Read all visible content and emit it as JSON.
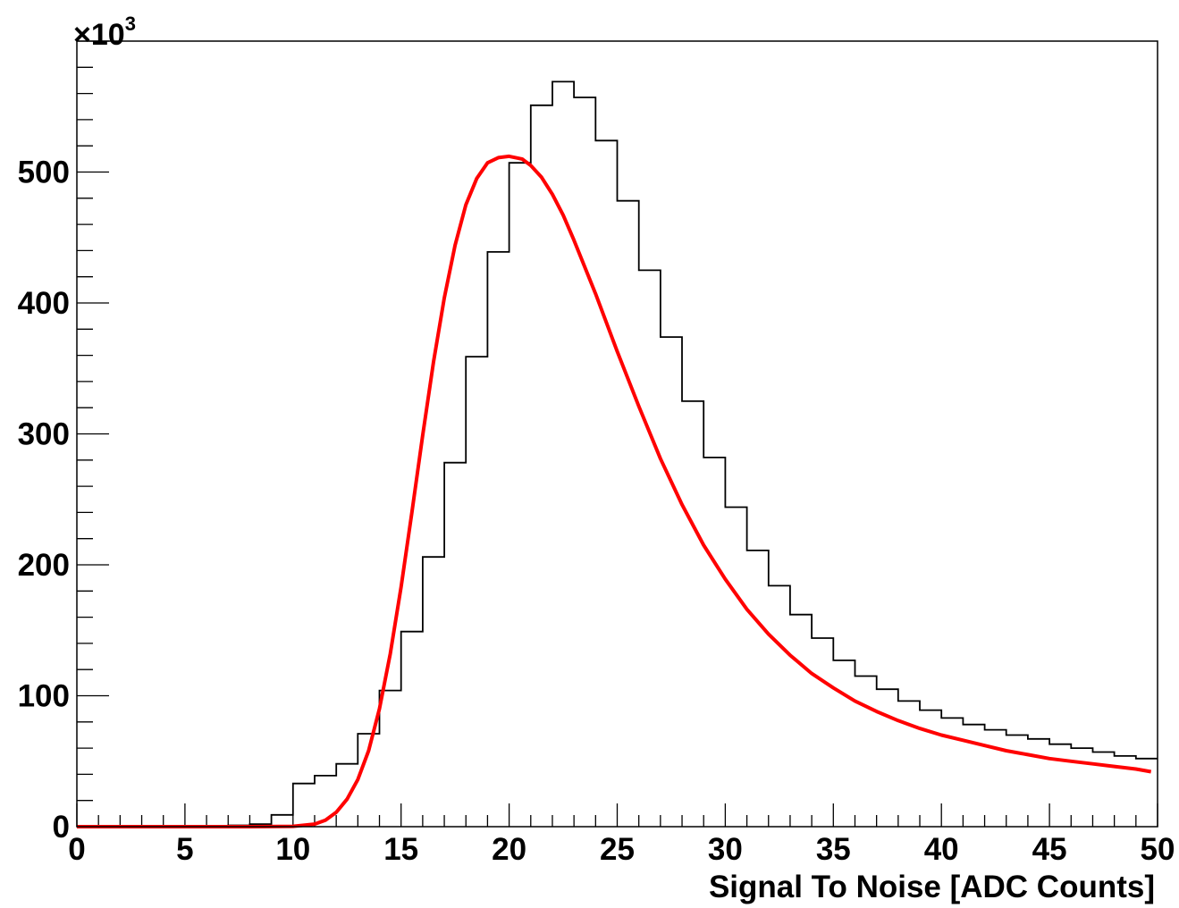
{
  "chart_data": {
    "type": "histogram",
    "title": "",
    "xlabel": "Signal To Noise [ADC Counts]",
    "ylabel": "",
    "xlim": [
      0,
      50
    ],
    "ylim": [
      0,
      600
    ],
    "y_multiplier": {
      "times": "×",
      "base": "10",
      "exponent": "3"
    },
    "x_tick_labels": [
      "0",
      "5",
      "10",
      "15",
      "20",
      "25",
      "30",
      "35",
      "40",
      "45",
      "50"
    ],
    "y_tick_labels": [
      "0",
      "100",
      "200",
      "300",
      "400",
      "500"
    ],
    "grid": false,
    "legend": "none",
    "colors": {
      "histogram": "#000000",
      "fit": "#ff0000",
      "frame": "#000000"
    },
    "series": [
      {
        "kind": "histogram",
        "bin_width": 1,
        "bin_edges_start": 0,
        "values": [
          0,
          0,
          0,
          0,
          0,
          0,
          0,
          1,
          2,
          9,
          33,
          39,
          48,
          71,
          104,
          149,
          206,
          278,
          359,
          439,
          507,
          551,
          569,
          557,
          524,
          478,
          425,
          374,
          325,
          282,
          244,
          211,
          184,
          162,
          144,
          127,
          115,
          105,
          96,
          89,
          83,
          78,
          74,
          70,
          67,
          63,
          60,
          57,
          54,
          52
        ]
      },
      {
        "kind": "fit-curve",
        "x": [
          0,
          8,
          10,
          11,
          11.5,
          12,
          12.5,
          13,
          13.5,
          14,
          14.5,
          15,
          15.5,
          16,
          16.5,
          17,
          17.5,
          18,
          18.5,
          19,
          19.5,
          20,
          20.3,
          20.6,
          21,
          21.5,
          22,
          22.5,
          23,
          24,
          25,
          26,
          27,
          28,
          29,
          30,
          31,
          32,
          33,
          34,
          35,
          36,
          37,
          38,
          39,
          40,
          41,
          42,
          43,
          44,
          45,
          46,
          47,
          48,
          49,
          49.7
        ],
        "y": [
          0,
          0,
          0.3,
          2,
          5,
          11,
          21,
          36,
          58,
          90,
          132,
          183,
          240,
          299,
          355,
          404,
          444,
          475,
          495,
          507,
          511,
          512,
          511,
          510,
          505,
          496,
          483,
          467,
          448,
          407,
          363,
          321,
          281,
          246,
          215,
          189,
          166,
          147,
          131,
          117,
          106,
          96,
          88,
          81,
          75,
          70,
          66,
          62,
          58,
          55,
          52,
          50,
          48,
          46,
          44,
          42
        ]
      }
    ]
  }
}
